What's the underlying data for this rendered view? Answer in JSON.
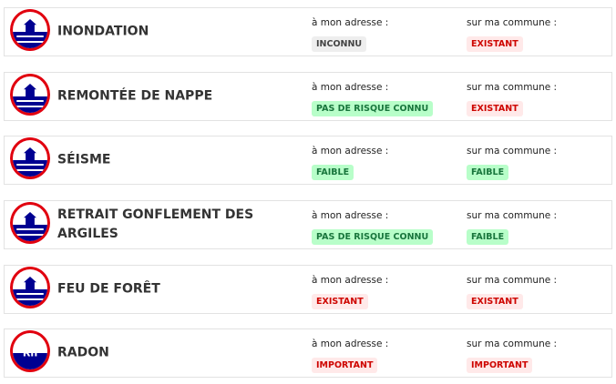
{
  "labels": {
    "address": "à mon adresse :",
    "commune": "sur ma commune :"
  },
  "colors": {
    "existant": "#ce0500",
    "ok": "#18753c",
    "inconnu": "#444444",
    "icon_ring": "#e1000f",
    "icon_fill": "#000091"
  },
  "risks": [
    {
      "title": "INONDATION",
      "icon": "flood-icon",
      "address": "INCONNU",
      "commune": "EXISTANT"
    },
    {
      "title": "REMONTÉE DE NAPPE",
      "icon": "groundwater-icon",
      "address": "PAS DE RISQUE CONNU",
      "commune": "EXISTANT"
    },
    {
      "title": "SÉISME",
      "icon": "earthquake-icon",
      "address": "FAIBLE",
      "commune": "FAIBLE"
    },
    {
      "title": "RETRAIT GONFLEMENT DES ARGILES",
      "icon": "clay-shrink-swell-icon",
      "address": "PAS DE RISQUE CONNU",
      "commune": "FAIBLE"
    },
    {
      "title": "FEU DE FORÊT",
      "icon": "forest-fire-icon",
      "address": "EXISTANT",
      "commune": "EXISTANT"
    },
    {
      "title": "RADON",
      "icon": "radon-icon",
      "address": "IMPORTANT",
      "commune": "IMPORTANT",
      "icon_text": "Rn"
    }
  ]
}
